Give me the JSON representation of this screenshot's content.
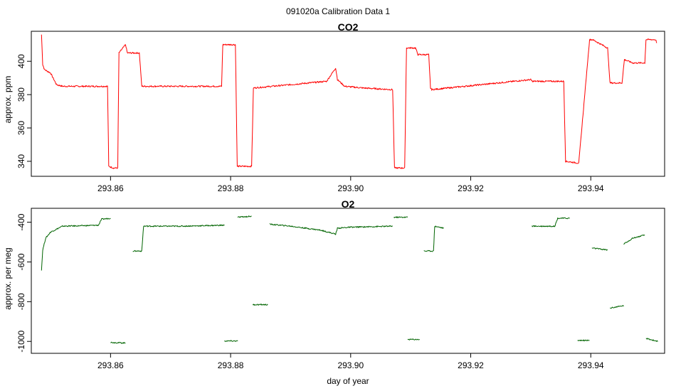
{
  "figure": {
    "title": "091020a   Calibration Data 1"
  },
  "chart_data": [
    {
      "type": "line",
      "title": "CO2",
      "xlabel": "",
      "ylabel": "approx. ppm",
      "color": "#ff0000",
      "xlim": [
        293.8468,
        293.9523
      ],
      "ylim": [
        331,
        418
      ],
      "xticks": [
        "293.86",
        "293.88",
        "293.90",
        "293.92",
        "293.94"
      ],
      "yticks": [
        "340",
        "360",
        "380",
        "400"
      ],
      "series": [
        {
          "x": [
            293.8485,
            293.8487,
            293.849,
            293.85,
            293.851,
            293.852,
            293.855,
            293.8595,
            293.8597,
            293.8605,
            293.8612,
            293.8614,
            293.8625,
            293.8628,
            293.8648,
            293.8652,
            293.872,
            293.8785,
            293.8787,
            293.8808,
            293.8811,
            293.8835,
            293.8838,
            293.89,
            293.896,
            293.8975,
            293.8978,
            293.899,
            293.902,
            293.907,
            293.9073,
            293.909,
            293.9093,
            293.9108,
            293.9112,
            293.913,
            293.9133,
            293.9135,
            293.93,
            293.9302,
            293.9355,
            293.9358,
            293.9378,
            293.938,
            293.9398,
            293.9403,
            293.9428,
            293.9432,
            293.9452,
            293.9456,
            293.947,
            293.949,
            293.9492,
            293.9508,
            293.951
          ],
          "y": [
            416,
            398,
            395,
            393,
            386,
            385,
            385,
            385,
            337,
            336,
            336,
            405,
            410,
            405,
            405,
            385,
            385,
            385,
            410,
            410,
            337,
            337,
            384,
            386,
            388,
            396,
            389,
            385,
            384,
            383,
            336,
            336,
            408,
            408,
            404,
            404,
            384,
            383,
            389,
            388,
            388,
            340,
            339,
            339,
            413,
            413,
            408,
            387,
            387,
            401,
            399,
            399,
            413,
            413,
            411
          ]
        }
      ]
    },
    {
      "type": "line",
      "title": "O2",
      "xlabel": "day of year",
      "ylabel": "approx. per meg",
      "color": "#006400",
      "xlim": [
        293.8468,
        293.9523
      ],
      "ylim": [
        -1060,
        -330
      ],
      "xticks": [
        "293.86",
        "293.88",
        "293.90",
        "293.92",
        "293.94"
      ],
      "yticks": [
        "-1000",
        "-800",
        "-600",
        "-400"
      ],
      "series": [
        {
          "x": [
            293.8485,
            293.8487,
            293.8492,
            293.85,
            293.852,
            293.855,
            293.858,
            293.8585,
            293.86
          ],
          "y": [
            -640,
            -540,
            -480,
            -450,
            -420,
            -418,
            -415,
            -385,
            -380
          ]
        },
        {
          "x": [
            293.86,
            293.8625
          ],
          "y": [
            -1005,
            -1008
          ]
        },
        {
          "x": [
            293.8637,
            293.8652,
            293.8655,
            293.872,
            293.879
          ],
          "y": [
            -545,
            -545,
            -420,
            -420,
            -415
          ]
        },
        {
          "x": [
            293.879,
            293.8812
          ],
          "y": [
            -998,
            -998
          ]
        },
        {
          "x": [
            293.8812,
            293.8835
          ],
          "y": [
            -375,
            -370
          ]
        },
        {
          "x": [
            293.8837,
            293.8862
          ],
          "y": [
            -815,
            -815
          ]
        },
        {
          "x": [
            293.8865,
            293.89,
            293.895,
            293.8975,
            293.8978,
            293.9,
            293.907
          ],
          "y": [
            -410,
            -420,
            -440,
            -460,
            -430,
            -425,
            -420
          ]
        },
        {
          "x": [
            293.9072,
            293.9095
          ],
          "y": [
            -375,
            -375
          ]
        },
        {
          "x": [
            293.9095,
            293.9115
          ],
          "y": [
            -990,
            -990
          ]
        },
        {
          "x": [
            293.9122,
            293.9138,
            293.914,
            293.9155
          ],
          "y": [
            -545,
            -545,
            -420,
            -430
          ]
        },
        {
          "x": [
            293.9302,
            293.934,
            293.9345,
            293.9365
          ],
          "y": [
            -420,
            -420,
            -380,
            -380
          ]
        },
        {
          "x": [
            293.9378,
            293.9398
          ],
          "y": [
            -995,
            -995
          ]
        },
        {
          "x": [
            293.9402,
            293.9428
          ],
          "y": [
            -530,
            -540
          ]
        },
        {
          "x": [
            293.9432,
            293.9455
          ],
          "y": [
            -832,
            -820
          ]
        },
        {
          "x": [
            293.9455,
            293.947,
            293.949
          ],
          "y": [
            -510,
            -480,
            -465
          ]
        },
        {
          "x": [
            293.9492,
            293.9512
          ],
          "y": [
            -985,
            -1000
          ]
        }
      ]
    }
  ]
}
